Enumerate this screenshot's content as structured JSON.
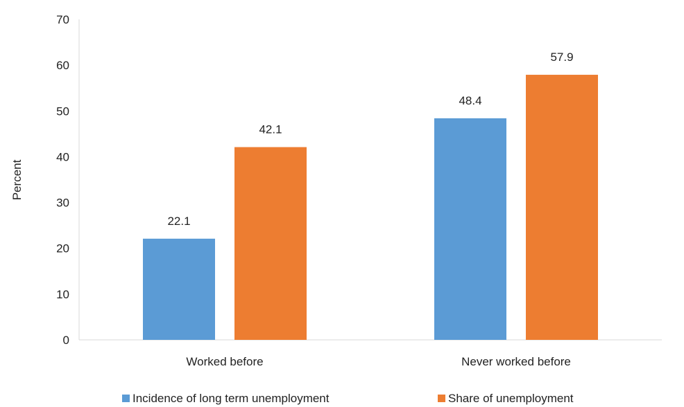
{
  "chart_data": {
    "type": "bar",
    "categories": [
      "Worked before",
      "Never worked before"
    ],
    "series": [
      {
        "name": "Incidence of long term unemployment",
        "values": [
          22.1,
          48.4
        ],
        "color": "#5B9BD5"
      },
      {
        "name": "Share of unemployment",
        "values": [
          42.1,
          57.9
        ],
        "color": "#ED7D31"
      }
    ],
    "data_labels": [
      [
        "22.1",
        "48.4"
      ],
      [
        "42.1",
        "57.9"
      ]
    ],
    "title": "",
    "xlabel": "",
    "ylabel": "Percent",
    "ylim": [
      0,
      70
    ],
    "yticks": [
      0,
      10,
      20,
      30,
      40,
      50,
      60,
      70
    ],
    "grid": false,
    "legend_position": "bottom"
  }
}
